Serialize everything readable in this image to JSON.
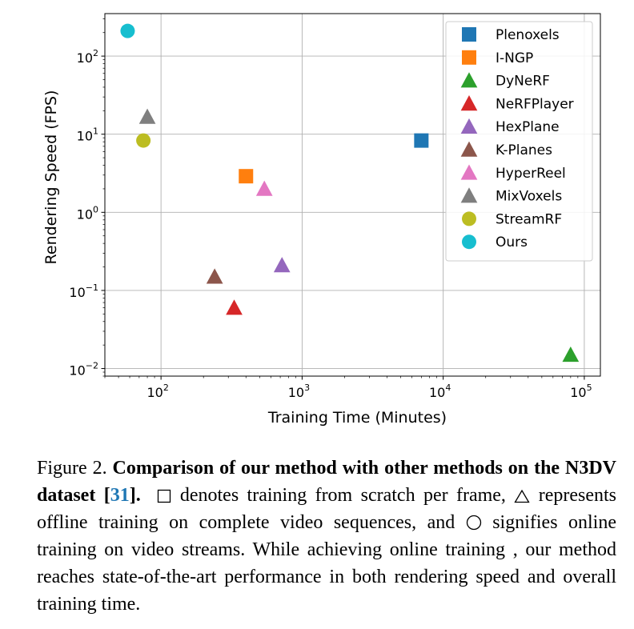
{
  "chart_data": {
    "type": "scatter",
    "xlabel": "Training Time (Minutes)",
    "ylabel": "Rendering Speed (FPS)",
    "xscale": "log",
    "yscale": "log",
    "xlim": [
      40,
      130000
    ],
    "ylim": [
      0.008,
      350
    ],
    "x_ticks": [
      {
        "base": "10",
        "exp": "2"
      },
      {
        "base": "10",
        "exp": "3"
      },
      {
        "base": "10",
        "exp": "4"
      },
      {
        "base": "10",
        "exp": "5"
      }
    ],
    "y_ticks": [
      {
        "base": "10",
        "exp": "2"
      },
      {
        "base": "10",
        "exp": "1"
      },
      {
        "base": "10",
        "exp": "0"
      },
      {
        "base": "10",
        "exp": "−1"
      },
      {
        "base": "10",
        "exp": "−2"
      }
    ],
    "grid": true,
    "legend_position": "top-right",
    "series": [
      {
        "name": "Plenoxels",
        "marker": "square",
        "color": "#1f77b4",
        "x": 7000,
        "y": 8.3
      },
      {
        "name": "I-NGP",
        "marker": "square",
        "color": "#ff7f0e",
        "x": 400,
        "y": 2.9
      },
      {
        "name": "DyNeRF",
        "marker": "triangle",
        "color": "#2ca02c",
        "x": 80000,
        "y": 0.015
      },
      {
        "name": "NeRFPlayer",
        "marker": "triangle",
        "color": "#d62728",
        "x": 330,
        "y": 0.06
      },
      {
        "name": "HexPlane",
        "marker": "triangle",
        "color": "#9467bd",
        "x": 720,
        "y": 0.21
      },
      {
        "name": "K-Planes",
        "marker": "triangle",
        "color": "#8c564b",
        "x": 240,
        "y": 0.15
      },
      {
        "name": "HyperReel",
        "marker": "triangle",
        "color": "#e377c2",
        "x": 540,
        "y": 2.0
      },
      {
        "name": "MixVoxels",
        "marker": "triangle",
        "color": "#7f7f7f",
        "x": 80,
        "y": 16.7
      },
      {
        "name": "StreamRF",
        "marker": "circle",
        "color": "#bcbd22",
        "x": 75,
        "y": 8.3
      },
      {
        "name": "Ours",
        "marker": "circle",
        "color": "#17becf",
        "x": 58,
        "y": 210
      }
    ]
  },
  "caption": {
    "figure_label": "Figure 2.",
    "bold_text": "Comparison of our method with other methods on the N3DV dataset [",
    "ref": "31",
    "bold_end": "].",
    "part1": " denotes training from scratch per frame,",
    "part2": " represents offline training on complete video sequences, and",
    "part3": " signifies online training on video streams. While achieving online training , our method reaches state-of-the-art performance in both rendering speed and overall training time."
  }
}
